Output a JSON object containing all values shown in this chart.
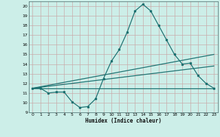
{
  "xlabel": "Humidex (Indice chaleur)",
  "ylabel": "",
  "bg_color": "#cceee8",
  "grid_color": "#c8a8a8",
  "line_color": "#1a7070",
  "xlim": [
    -0.5,
    23.5
  ],
  "ylim": [
    9,
    20.5
  ],
  "xticks": [
    0,
    1,
    2,
    3,
    4,
    5,
    6,
    7,
    8,
    9,
    10,
    11,
    12,
    13,
    14,
    15,
    16,
    17,
    18,
    19,
    20,
    21,
    22,
    23
  ],
  "yticks": [
    9,
    10,
    11,
    12,
    13,
    14,
    15,
    16,
    17,
    18,
    19,
    20
  ],
  "line1_x": [
    0,
    1,
    2,
    3,
    4,
    5,
    6,
    7,
    8,
    9,
    10,
    11,
    12,
    13,
    14,
    15,
    16,
    17,
    18,
    19,
    20,
    21,
    22,
    23
  ],
  "line1_y": [
    11.5,
    11.5,
    11.0,
    11.1,
    11.1,
    10.1,
    9.5,
    9.6,
    10.4,
    12.5,
    14.3,
    15.5,
    17.3,
    19.5,
    20.2,
    19.5,
    18.0,
    16.5,
    15.0,
    14.0,
    14.1,
    12.8,
    12.0,
    11.5
  ],
  "line2_x": [
    0,
    23
  ],
  "line2_y": [
    11.5,
    11.5
  ],
  "line3_x": [
    0,
    23
  ],
  "line3_y": [
    11.5,
    13.8
  ],
  "line4_x": [
    0,
    23
  ],
  "line4_y": [
    11.5,
    15.0
  ]
}
